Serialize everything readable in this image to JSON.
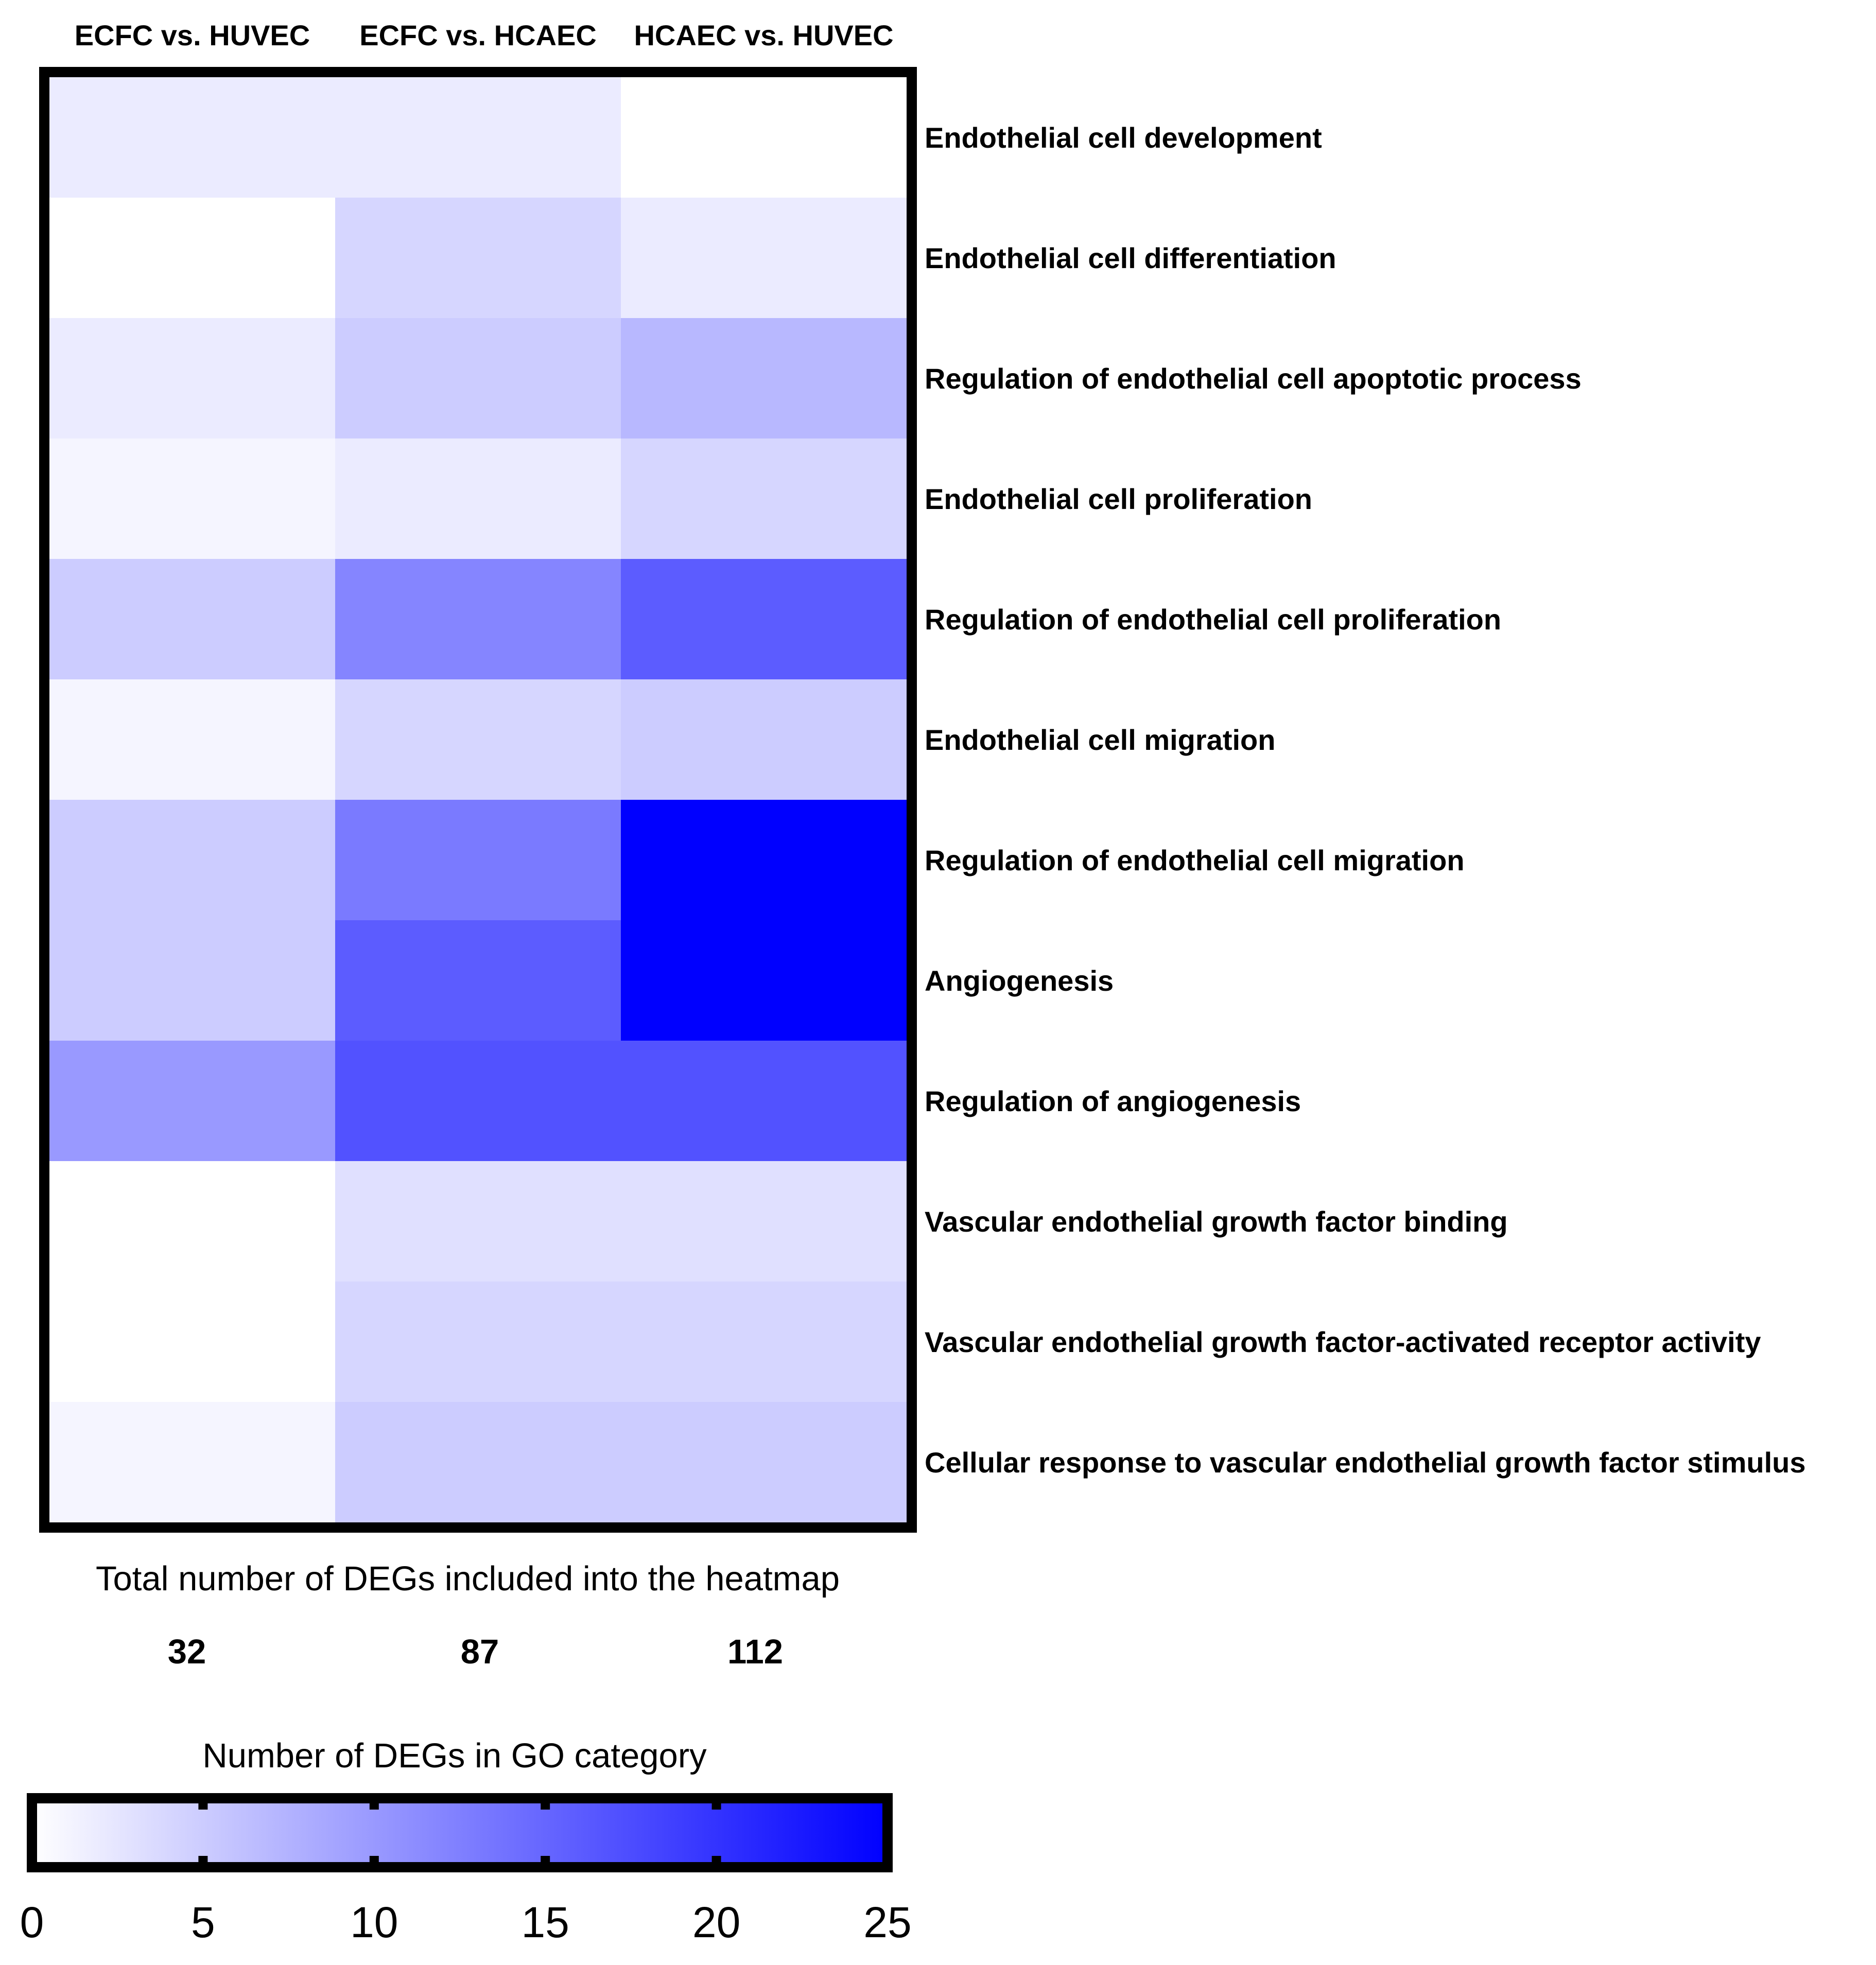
{
  "chart_data": {
    "type": "heatmap",
    "columns": [
      "ECFC vs. HUVEC",
      "ECFC vs. HCAEC",
      "HCAEC vs. HUVEC"
    ],
    "rows": [
      "Endothelial cell development",
      "Endothelial cell differentiation",
      "Regulation of endothelial cell apoptotic process",
      "Endothelial cell proliferation",
      "Regulation of endothelial cell proliferation",
      "Endothelial cell migration",
      "Regulation of endothelial cell migration",
      "Angiogenesis",
      "Regulation of angiogenesis",
      "Vascular endothelial growth factor binding",
      "Vascular endothelial growth factor-activated receptor activity",
      "Cellular response to vascular endothelial growth factor stimulus"
    ],
    "values": [
      [
        2,
        2,
        0
      ],
      [
        0,
        4,
        2
      ],
      [
        2,
        5,
        7
      ],
      [
        1,
        2,
        4
      ],
      [
        5,
        12,
        16
      ],
      [
        1,
        4,
        5
      ],
      [
        5,
        13,
        25
      ],
      [
        5,
        16,
        25
      ],
      [
        10,
        17,
        17
      ],
      [
        0,
        3,
        3
      ],
      [
        0,
        4,
        4
      ],
      [
        1,
        5,
        5
      ]
    ],
    "totals_label": "Total number of DEGs included into the heatmap",
    "totals": [
      "32",
      "87",
      "112"
    ],
    "colorbar": {
      "title": "Number of DEGs in GO category",
      "min": 0,
      "max": 25,
      "ticks": [
        0,
        5,
        10,
        15,
        20,
        25
      ],
      "tick_labels": [
        "0",
        "5",
        "10",
        "15",
        "20",
        "25"
      ],
      "color_low": "#ffffff",
      "color_high": "#0000ff"
    }
  }
}
